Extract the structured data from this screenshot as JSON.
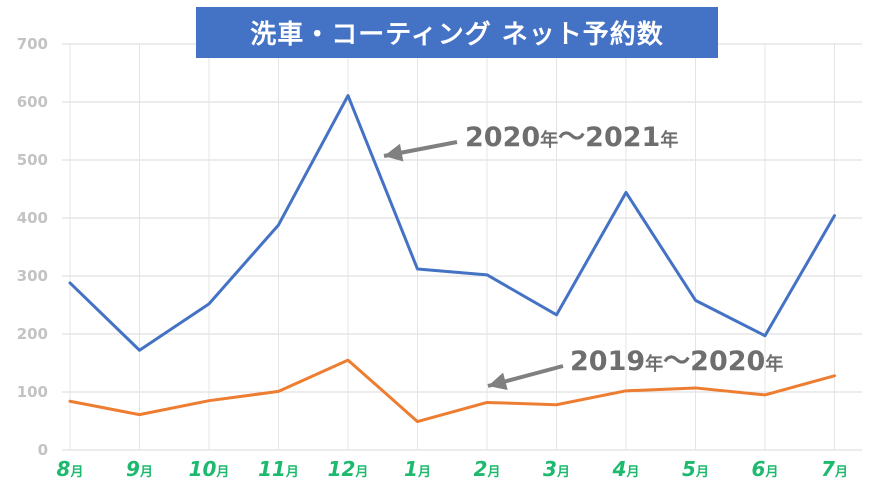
{
  "chart_data": {
    "type": "line",
    "title": "洗車・コーティング ネット予約数",
    "categories": [
      "8月",
      "9月",
      "10月",
      "11月",
      "12月",
      "1月",
      "2月",
      "3月",
      "4月",
      "5月",
      "6月",
      "7月"
    ],
    "category_numbers": [
      "8",
      "9",
      "10",
      "11",
      "12",
      "1",
      "2",
      "3",
      "4",
      "5",
      "6",
      "7"
    ],
    "month_suffix": "月",
    "yticks": [
      "700",
      "600",
      "500",
      "400",
      "300",
      "200",
      "100",
      "0"
    ],
    "ylim": [
      0,
      700
    ],
    "grid": true,
    "series": [
      {
        "name": "2020年〜2021年",
        "color": "#4472C4",
        "values": [
          288,
          172,
          252,
          388,
          611,
          312,
          302,
          233,
          444,
          258,
          197,
          404
        ]
      },
      {
        "name": "2019年〜2020年",
        "color": "#ED7D31",
        "values": [
          84,
          61,
          85,
          101,
          155,
          49,
          82,
          78,
          102,
          107,
          95,
          128
        ]
      }
    ],
    "annotations": [
      {
        "parts": [
          "2020",
          "年",
          "〜",
          "2021",
          "年"
        ],
        "target": "12月"
      },
      {
        "parts": [
          "2019",
          "年",
          "〜",
          "2020",
          "年"
        ],
        "target": "2月"
      }
    ],
    "arrow_color": "#808080"
  }
}
